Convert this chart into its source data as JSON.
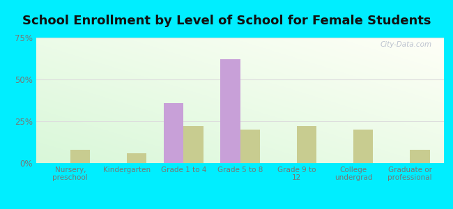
{
  "title": "School Enrollment by Level of School for Female Students",
  "categories": [
    "Nursery,\npreschool",
    "Kindergarten",
    "Grade 1 to 4",
    "Grade 5 to 8",
    "Grade 9 to\n12",
    "College\nundergrad",
    "Graduate or\nprofessional"
  ],
  "booneville": [
    0,
    0,
    36,
    62,
    0,
    0,
    0
  ],
  "kentucky": [
    8,
    6,
    22,
    20,
    22,
    20,
    8
  ],
  "booneville_color": "#c8a0d8",
  "kentucky_color": "#c8cc90",
  "bar_width": 0.35,
  "ylim": [
    0,
    75
  ],
  "yticks": [
    0,
    25,
    50,
    75
  ],
  "ytick_labels": [
    "0%",
    "25%",
    "50%",
    "75%"
  ],
  "background_color": "#00eeff",
  "grid_color": "#dddddd",
  "title_fontsize": 13,
  "title_color": "#111111",
  "tick_color": "#777777",
  "watermark": "City-Data.com"
}
